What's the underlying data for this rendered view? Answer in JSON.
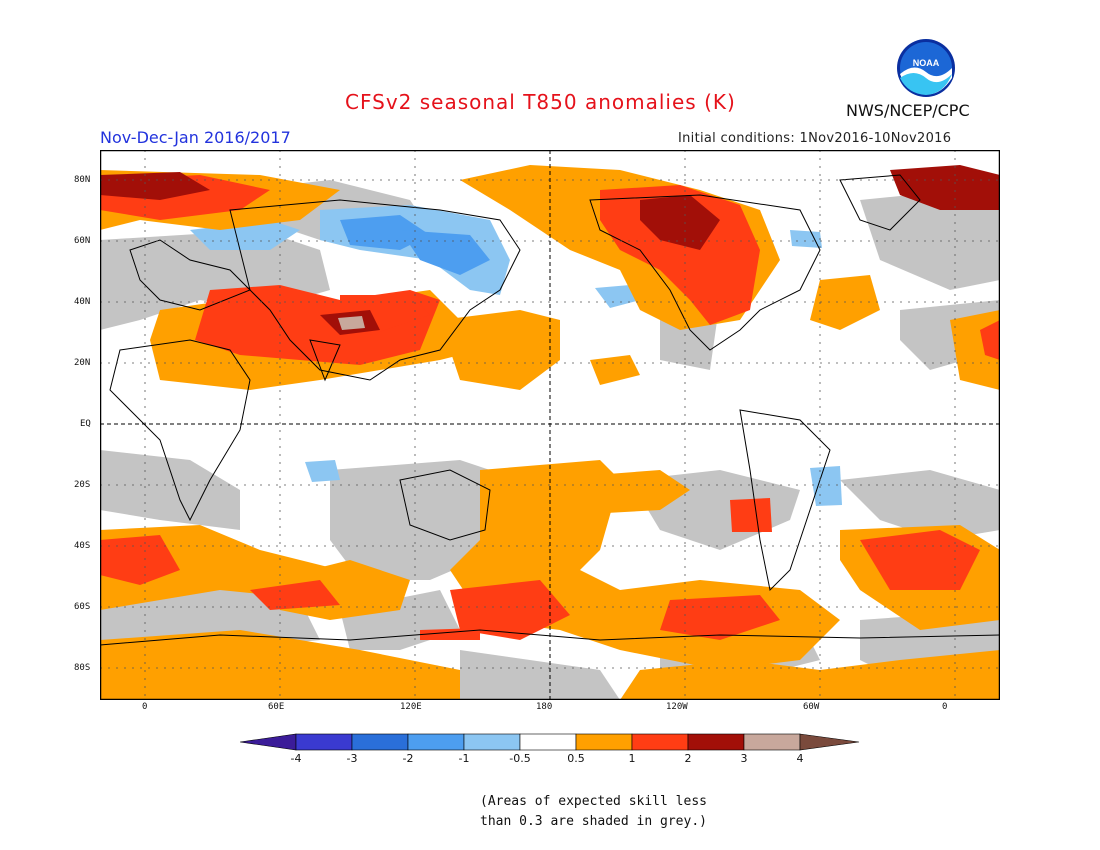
{
  "header": {
    "title": "CFSv2 seasonal T850 anomalies (K)",
    "season": "Nov-Dec-Jan 2016/2017",
    "initial_conditions": "Initial conditions: 1Nov2016-10Nov2016",
    "agency": "NWS/NCEP/CPC",
    "logo_text": "NOAA"
  },
  "map": {
    "longitude_labels": [
      "0",
      "60E",
      "120E",
      "180",
      "120W",
      "60W",
      "0"
    ],
    "latitude_labels": [
      "80N",
      "60N",
      "40N",
      "20N",
      "EQ",
      "20S",
      "40S",
      "60S",
      "80S"
    ]
  },
  "colorbar": {
    "labels": [
      "-4",
      "-3",
      "-2",
      "-1",
      "-0.5",
      "0.5",
      "1",
      "2",
      "3",
      "4"
    ],
    "colors": [
      "#3b1c99",
      "#3a3ad0",
      "#2a6fd9",
      "#4d9ef0",
      "#8cc6f2",
      "#ffffff",
      "#ffa000",
      "#ff3d14",
      "#a20f08",
      "#c8a89c",
      "#7a4a3c"
    ]
  },
  "footnote": {
    "line1": "(Areas of expected skill less",
    "line2": "than 0.3 are shaded in grey.)"
  }
}
